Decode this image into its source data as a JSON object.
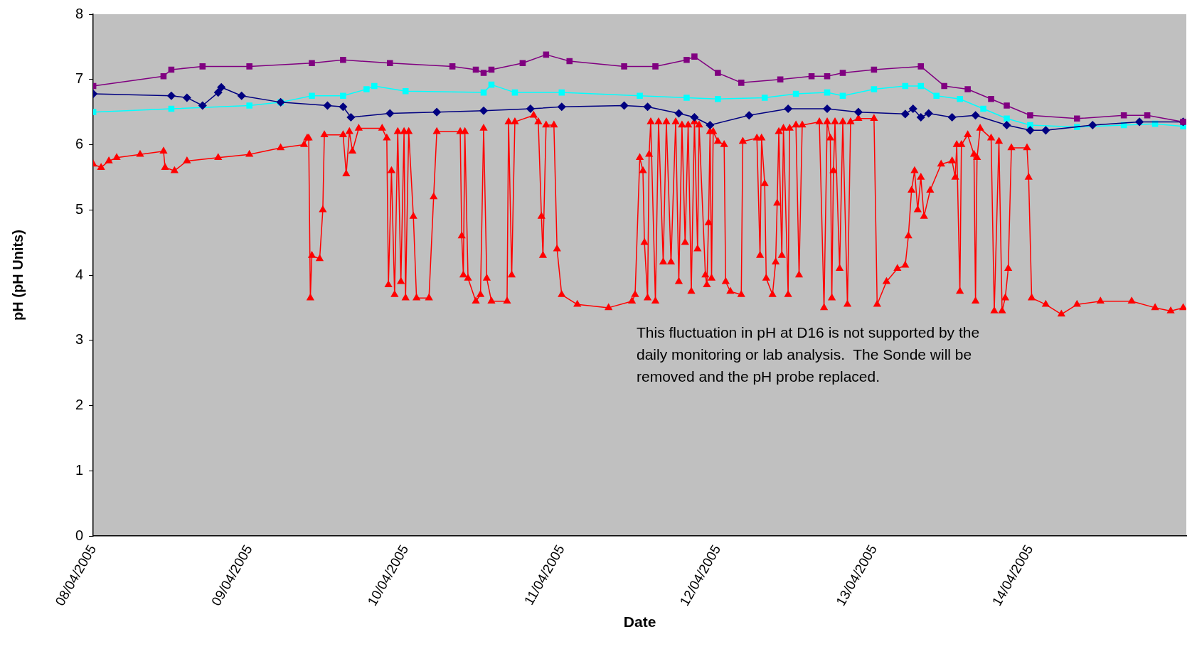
{
  "chart_data": {
    "type": "line",
    "xlabel": "Date",
    "ylabel": "pH (pH Units)",
    "xlim": [
      "2005-04-08",
      "2005-04-15"
    ],
    "ylim": [
      0,
      8
    ],
    "yticks": [
      0,
      1,
      2,
      3,
      4,
      5,
      6,
      7,
      8
    ],
    "xticks": [
      {
        "value": "2005-04-08",
        "label": "08/04/2005"
      },
      {
        "value": "2005-04-09",
        "label": "09/04/2005"
      },
      {
        "value": "2005-04-10",
        "label": "10/04/2005"
      },
      {
        "value": "2005-04-11",
        "label": "11/04/2005"
      },
      {
        "value": "2005-04-12",
        "label": "12/04/2005"
      },
      {
        "value": "2005-04-13",
        "label": "13/04/2005"
      },
      {
        "value": "2005-04-14",
        "label": "14/04/2005"
      }
    ],
    "grid": false,
    "legend": false,
    "line_style": "solid",
    "annotations": [
      "This fluctuation in pH at D16 is not supported by the daily monitoring or lab analysis.  The Sonde will be removed and the pH probe replaced."
    ],
    "series": [
      {
        "color": "#800080",
        "marker": "square",
        "x": [
          "2005-04-08T00:00",
          "2005-04-08T10:48",
          "2005-04-08T12:00",
          "2005-04-08T16:48",
          "2005-04-09T00:00",
          "2005-04-09T09:36",
          "2005-04-09T14:24",
          "2005-04-09T21:36",
          "2005-04-10T07:12",
          "2005-04-10T10:48",
          "2005-04-10T12:00",
          "2005-04-10T13:12",
          "2005-04-10T18:00",
          "2005-04-10T21:36",
          "2005-04-11T01:12",
          "2005-04-11T09:36",
          "2005-04-11T14:24",
          "2005-04-11T19:12",
          "2005-04-11T20:24",
          "2005-04-12T00:00",
          "2005-04-12T03:36",
          "2005-04-12T09:36",
          "2005-04-12T14:24",
          "2005-04-12T16:48",
          "2005-04-12T19:12",
          "2005-04-13T00:00",
          "2005-04-13T07:12",
          "2005-04-13T10:48",
          "2005-04-13T14:24",
          "2005-04-13T18:00",
          "2005-04-13T20:24",
          "2005-04-14T00:00",
          "2005-04-14T07:12",
          "2005-04-14T14:24",
          "2005-04-14T18:00",
          "2005-04-14T23:31"
        ],
        "values": [
          6.9,
          7.05,
          7.15,
          7.2,
          7.2,
          7.25,
          7.3,
          7.25,
          7.2,
          7.15,
          7.1,
          7.15,
          7.25,
          7.38,
          7.28,
          7.2,
          7.2,
          7.3,
          7.35,
          7.1,
          6.95,
          7.0,
          7.05,
          7.05,
          7.1,
          7.15,
          7.2,
          6.9,
          6.85,
          6.7,
          6.6,
          6.45,
          6.4,
          6.45,
          6.45,
          6.35
        ]
      },
      {
        "color": "#000080",
        "marker": "diamond",
        "x": [
          "2005-04-08T00:00",
          "2005-04-08T12:00",
          "2005-04-08T14:24",
          "2005-04-08T16:48",
          "2005-04-08T19:12",
          "2005-04-08T19:41",
          "2005-04-08T22:48",
          "2005-04-09T04:48",
          "2005-04-09T12:00",
          "2005-04-09T14:24",
          "2005-04-09T15:36",
          "2005-04-09T21:36",
          "2005-04-10T04:48",
          "2005-04-10T12:00",
          "2005-04-10T19:12",
          "2005-04-11T00:00",
          "2005-04-11T09:36",
          "2005-04-11T13:12",
          "2005-04-11T18:00",
          "2005-04-11T20:24",
          "2005-04-11T22:48",
          "2005-04-12T04:48",
          "2005-04-12T10:48",
          "2005-04-12T16:48",
          "2005-04-12T21:36",
          "2005-04-13T04:48",
          "2005-04-13T06:00",
          "2005-04-13T07:12",
          "2005-04-13T08:24",
          "2005-04-13T12:00",
          "2005-04-13T15:36",
          "2005-04-13T20:24",
          "2005-04-14T00:00",
          "2005-04-14T02:24",
          "2005-04-14T09:36",
          "2005-04-14T16:48",
          "2005-04-14T23:31"
        ],
        "values": [
          6.78,
          6.75,
          6.72,
          6.6,
          6.8,
          6.88,
          6.75,
          6.65,
          6.6,
          6.58,
          6.42,
          6.48,
          6.5,
          6.52,
          6.55,
          6.58,
          6.6,
          6.58,
          6.48,
          6.42,
          6.3,
          6.45,
          6.55,
          6.55,
          6.5,
          6.47,
          6.55,
          6.42,
          6.48,
          6.42,
          6.45,
          6.3,
          6.22,
          6.22,
          6.3,
          6.35,
          6.35
        ]
      },
      {
        "color": "#00ffff",
        "marker": "square",
        "x": [
          "2005-04-08T00:00",
          "2005-04-08T12:00",
          "2005-04-09T00:00",
          "2005-04-09T04:48",
          "2005-04-09T09:36",
          "2005-04-09T14:24",
          "2005-04-09T18:00",
          "2005-04-09T19:12",
          "2005-04-10T00:00",
          "2005-04-10T12:00",
          "2005-04-10T13:12",
          "2005-04-10T16:48",
          "2005-04-11T00:00",
          "2005-04-11T12:00",
          "2005-04-11T19:12",
          "2005-04-12T00:00",
          "2005-04-12T07:12",
          "2005-04-12T12:00",
          "2005-04-12T16:48",
          "2005-04-12T19:12",
          "2005-04-13T00:00",
          "2005-04-13T04:48",
          "2005-04-13T07:12",
          "2005-04-13T09:36",
          "2005-04-13T13:12",
          "2005-04-13T16:48",
          "2005-04-13T20:24",
          "2005-04-14T00:00",
          "2005-04-14T07:12",
          "2005-04-14T14:24",
          "2005-04-14T19:12",
          "2005-04-14T23:31"
        ],
        "values": [
          6.5,
          6.55,
          6.6,
          6.65,
          6.75,
          6.75,
          6.85,
          6.9,
          6.82,
          6.8,
          6.92,
          6.8,
          6.8,
          6.75,
          6.72,
          6.7,
          6.72,
          6.78,
          6.8,
          6.75,
          6.85,
          6.9,
          6.9,
          6.75,
          6.7,
          6.55,
          6.4,
          6.3,
          6.27,
          6.3,
          6.32,
          6.28
        ]
      },
      {
        "color": "#ff0000",
        "marker": "triangle",
        "x": [
          "2005-04-08T00:00",
          "2005-04-08T01:12",
          "2005-04-08T02:24",
          "2005-04-08T03:36",
          "2005-04-08T07:12",
          "2005-04-08T10:48",
          "2005-04-08T11:02",
          "2005-04-08T12:29",
          "2005-04-08T14:24",
          "2005-04-08T19:12",
          "2005-04-09T00:00",
          "2005-04-09T04:48",
          "2005-04-09T08:24",
          "2005-04-09T08:53",
          "2005-04-09T09:07",
          "2005-04-09T09:22",
          "2005-04-09T09:36",
          "2005-04-09T10:48",
          "2005-04-09T11:17",
          "2005-04-09T11:31",
          "2005-04-09T14:24",
          "2005-04-09T14:53",
          "2005-04-09T15:22",
          "2005-04-09T15:50",
          "2005-04-09T16:48",
          "2005-04-09T20:24",
          "2005-04-09T21:07",
          "2005-04-09T21:22",
          "2005-04-09T21:50",
          "2005-04-09T22:19",
          "2005-04-09T22:48",
          "2005-04-09T23:17",
          "2005-04-09T23:46",
          "2005-04-10T00:00",
          "2005-04-10T00:29",
          "2005-04-10T01:12",
          "2005-04-10T01:41",
          "2005-04-10T03:36",
          "2005-04-10T04:19",
          "2005-04-10T04:48",
          "2005-04-10T08:24",
          "2005-04-10T08:38",
          "2005-04-10T08:53",
          "2005-04-10T09:07",
          "2005-04-10T09:36",
          "2005-04-10T10:48",
          "2005-04-10T11:31",
          "2005-04-10T12:00",
          "2005-04-10T12:29",
          "2005-04-10T13:12",
          "2005-04-10T15:36",
          "2005-04-10T15:50",
          "2005-04-10T16:19",
          "2005-04-10T16:48",
          "2005-04-10T19:41",
          "2005-04-10T20:24",
          "2005-04-10T20:53",
          "2005-04-10T21:07",
          "2005-04-10T21:36",
          "2005-04-10T22:48",
          "2005-04-10T23:17",
          "2005-04-11T00:00",
          "2005-04-11T02:24",
          "2005-04-11T07:12",
          "2005-04-11T10:48",
          "2005-04-11T11:17",
          "2005-04-11T12:00",
          "2005-04-11T12:29",
          "2005-04-11T12:43",
          "2005-04-11T13:12",
          "2005-04-11T13:26",
          "2005-04-11T13:41",
          "2005-04-11T14:24",
          "2005-04-11T14:53",
          "2005-04-11T15:36",
          "2005-04-11T16:05",
          "2005-04-11T16:48",
          "2005-04-11T17:31",
          "2005-04-11T18:00",
          "2005-04-11T18:29",
          "2005-04-11T18:58",
          "2005-04-11T19:26",
          "2005-04-11T19:55",
          "2005-04-11T20:24",
          "2005-04-11T20:53",
          "2005-04-11T21:07",
          "2005-04-11T22:05",
          "2005-04-11T22:19",
          "2005-04-11T22:34",
          "2005-04-11T22:48",
          "2005-04-11T23:02",
          "2005-04-11T23:17",
          "2005-04-12T00:00",
          "2005-04-12T00:58",
          "2005-04-12T01:12",
          "2005-04-12T01:55",
          "2005-04-12T03:36",
          "2005-04-12T03:50",
          "2005-04-12T06:00",
          "2005-04-12T06:29",
          "2005-04-12T06:43",
          "2005-04-12T07:12",
          "2005-04-12T07:26",
          "2005-04-12T08:24",
          "2005-04-12T08:53",
          "2005-04-12T09:07",
          "2005-04-12T09:22",
          "2005-04-12T09:50",
          "2005-04-12T10:05",
          "2005-04-12T10:48",
          "2005-04-12T11:02",
          "2005-04-12T12:00",
          "2005-04-12T12:29",
          "2005-04-12T12:58",
          "2005-04-12T15:36",
          "2005-04-12T16:19",
          "2005-04-12T16:48",
          "2005-04-12T17:17",
          "2005-04-12T17:31",
          "2005-04-12T17:46",
          "2005-04-12T18:00",
          "2005-04-12T18:43",
          "2005-04-12T19:12",
          "2005-04-12T19:55",
          "2005-04-12T20:24",
          "2005-04-12T21:36",
          "2005-04-13T00:00",
          "2005-04-13T00:29",
          "2005-04-13T01:55",
          "2005-04-13T03:36",
          "2005-04-13T04:48",
          "2005-04-13T05:17",
          "2005-04-13T05:46",
          "2005-04-13T06:14",
          "2005-04-13T06:43",
          "2005-04-13T07:12",
          "2005-04-13T07:41",
          "2005-04-13T08:38",
          "2005-04-13T10:19",
          "2005-04-13T12:00",
          "2005-04-13T12:29",
          "2005-04-13T12:43",
          "2005-04-13T13:12",
          "2005-04-13T13:26",
          "2005-04-13T14:24",
          "2005-04-13T15:22",
          "2005-04-13T15:36",
          "2005-04-13T15:50",
          "2005-04-13T16:19",
          "2005-04-13T18:00",
          "2005-04-13T18:29",
          "2005-04-13T19:12",
          "2005-04-13T19:41",
          "2005-04-13T20:10",
          "2005-04-13T20:38",
          "2005-04-13T21:07",
          "2005-04-13T23:31",
          "2005-04-13T23:46",
          "2005-04-14T00:14",
          "2005-04-14T02:24",
          "2005-04-14T04:48",
          "2005-04-14T07:12",
          "2005-04-14T10:48",
          "2005-04-14T15:36",
          "2005-04-14T19:12",
          "2005-04-14T21:36",
          "2005-04-14T23:31"
        ],
        "values": [
          5.7,
          5.65,
          5.75,
          5.8,
          5.85,
          5.9,
          5.65,
          5.6,
          5.75,
          5.8,
          5.85,
          5.95,
          6.0,
          6.1,
          6.1,
          3.65,
          4.3,
          4.25,
          5.0,
          6.15,
          6.15,
          5.55,
          6.2,
          5.9,
          6.25,
          6.25,
          6.1,
          3.85,
          5.6,
          3.7,
          6.2,
          3.9,
          6.2,
          3.65,
          6.2,
          4.9,
          3.65,
          3.65,
          5.2,
          6.2,
          6.2,
          4.6,
          4.0,
          6.2,
          3.95,
          3.6,
          3.7,
          6.25,
          3.95,
          3.6,
          3.6,
          6.35,
          4.0,
          6.35,
          6.45,
          6.35,
          4.9,
          4.3,
          6.3,
          6.3,
          4.4,
          3.7,
          3.55,
          3.5,
          3.6,
          3.7,
          5.8,
          5.6,
          4.5,
          3.65,
          5.85,
          6.35,
          3.6,
          6.35,
          4.2,
          6.35,
          4.2,
          6.35,
          3.9,
          6.3,
          4.5,
          6.3,
          3.75,
          6.35,
          4.4,
          6.3,
          4.0,
          3.85,
          4.8,
          6.2,
          3.95,
          6.2,
          6.05,
          6.0,
          3.9,
          3.75,
          3.7,
          6.05,
          6.1,
          4.3,
          6.1,
          5.4,
          3.95,
          3.7,
          4.2,
          5.1,
          6.2,
          4.3,
          6.25,
          3.7,
          6.25,
          6.3,
          4.0,
          6.3,
          6.35,
          3.5,
          6.35,
          6.1,
          3.65,
          5.6,
          6.35,
          4.1,
          6.35,
          3.55,
          6.35,
          6.4,
          6.4,
          3.55,
          3.9,
          4.1,
          4.15,
          4.6,
          5.3,
          5.6,
          5.0,
          5.5,
          4.9,
          5.3,
          5.7,
          5.75,
          5.5,
          6.0,
          3.75,
          6.0,
          6.15,
          5.85,
          3.6,
          5.8,
          6.25,
          6.1,
          3.45,
          6.05,
          3.45,
          3.65,
          4.1,
          5.95,
          5.95,
          5.5,
          3.65,
          3.55,
          3.4,
          3.55,
          3.6,
          3.6,
          3.5,
          3.45,
          3.5
        ]
      }
    ]
  }
}
